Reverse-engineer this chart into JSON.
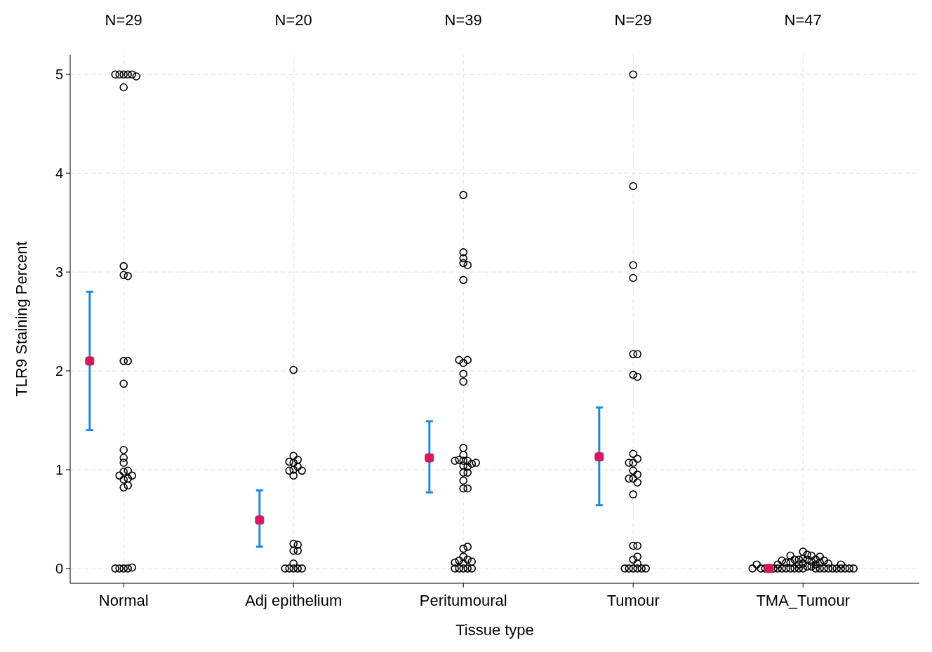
{
  "chart_data": {
    "type": "scatter",
    "xlabel": "Tissue type",
    "ylabel": "TLR9 Staining Percent",
    "categories": [
      "Normal",
      "Adj epithelium",
      "Peritumoural",
      "Tumour",
      "TMA_Tumour"
    ],
    "ylim": [
      -0.15,
      5.2
    ],
    "yticks": [
      0,
      1,
      2,
      3,
      4,
      5
    ],
    "grid": true,
    "annotations": [
      "N=29",
      "N=20",
      "N=39",
      "N=29",
      "N=47"
    ],
    "series": [
      {
        "color": "#000000",
        "marker": "circle",
        "x": [
          "Normal",
          "Normal",
          "Normal",
          "Normal",
          "Normal",
          "Normal",
          "Normal",
          "Normal",
          "Normal",
          "Normal",
          "Normal",
          "Normal",
          "Normal",
          "Normal",
          "Normal",
          "Normal",
          "Normal",
          "Normal",
          "Normal",
          "Normal",
          "Normal",
          "Normal",
          "Normal",
          "Normal",
          "Normal",
          "Normal",
          "Normal",
          "Normal",
          "Normal",
          "Adj epithelium",
          "Adj epithelium",
          "Adj epithelium",
          "Adj epithelium",
          "Adj epithelium",
          "Adj epithelium",
          "Adj epithelium",
          "Adj epithelium",
          "Adj epithelium",
          "Adj epithelium",
          "Adj epithelium",
          "Adj epithelium",
          "Adj epithelium",
          "Adj epithelium",
          "Adj epithelium",
          "Adj epithelium",
          "Adj epithelium",
          "Adj epithelium",
          "Adj epithelium",
          "Adj epithelium",
          "Peritumoural",
          "Peritumoural",
          "Peritumoural",
          "Peritumoural",
          "Peritumoural",
          "Peritumoural",
          "Peritumoural",
          "Peritumoural",
          "Peritumoural",
          "Peritumoural",
          "Peritumoural",
          "Peritumoural",
          "Peritumoural",
          "Peritumoural",
          "Peritumoural",
          "Peritumoural",
          "Peritumoural",
          "Peritumoural",
          "Peritumoural",
          "Peritumoural",
          "Peritumoural",
          "Peritumoural",
          "Peritumoural",
          "Peritumoural",
          "Peritumoural",
          "Peritumoural",
          "Peritumoural",
          "Peritumoural",
          "Peritumoural",
          "Peritumoural",
          "Peritumoural",
          "Peritumoural",
          "Peritumoural",
          "Peritumoural",
          "Peritumoural",
          "Peritumoural",
          "Peritumoural",
          "Peritumoural",
          "Peritumoural",
          "Tumour",
          "Tumour",
          "Tumour",
          "Tumour",
          "Tumour",
          "Tumour",
          "Tumour",
          "Tumour",
          "Tumour",
          "Tumour",
          "Tumour",
          "Tumour",
          "Tumour",
          "Tumour",
          "Tumour",
          "Tumour",
          "Tumour",
          "Tumour",
          "Tumour",
          "Tumour",
          "Tumour",
          "Tumour",
          "Tumour",
          "Tumour",
          "Tumour",
          "Tumour",
          "Tumour",
          "Tumour",
          "Tumour",
          "TMA_Tumour",
          "TMA_Tumour",
          "TMA_Tumour",
          "TMA_Tumour",
          "TMA_Tumour",
          "TMA_Tumour",
          "TMA_Tumour",
          "TMA_Tumour",
          "TMA_Tumour",
          "TMA_Tumour",
          "TMA_Tumour",
          "TMA_Tumour",
          "TMA_Tumour",
          "TMA_Tumour",
          "TMA_Tumour",
          "TMA_Tumour",
          "TMA_Tumour",
          "TMA_Tumour",
          "TMA_Tumour",
          "TMA_Tumour",
          "TMA_Tumour",
          "TMA_Tumour",
          "TMA_Tumour",
          "TMA_Tumour",
          "TMA_Tumour",
          "TMA_Tumour",
          "TMA_Tumour",
          "TMA_Tumour",
          "TMA_Tumour",
          "TMA_Tumour",
          "TMA_Tumour",
          "TMA_Tumour",
          "TMA_Tumour",
          "TMA_Tumour",
          "TMA_Tumour",
          "TMA_Tumour",
          "TMA_Tumour",
          "TMA_Tumour",
          "TMA_Tumour",
          "TMA_Tumour",
          "TMA_Tumour",
          "TMA_Tumour",
          "TMA_Tumour",
          "TMA_Tumour",
          "TMA_Tumour",
          "TMA_Tumour",
          "TMA_Tumour"
        ],
        "values": [
          5,
          5,
          5,
          4.87,
          5,
          5,
          4.98,
          2.97,
          3.06,
          2.96,
          2.1,
          2.1,
          1.87,
          1.2,
          0.98,
          0.9,
          0.91,
          0.82,
          0.94,
          0.99,
          1.12,
          1.07,
          0.94,
          0.84,
          0,
          0,
          0,
          0.01,
          0,
          2.01,
          0.94,
          1.07,
          1.1,
          1.03,
          1.14,
          1.08,
          1.0,
          0.99,
          0,
          0,
          0.25,
          0.18,
          0.18,
          0,
          0,
          0.05,
          0,
          0.99,
          0.24,
          3.78,
          3.09,
          3.14,
          3.2,
          3.07,
          2.92,
          2.08,
          2.11,
          2.11,
          1.97,
          1.89,
          1.22,
          1.15,
          1.09,
          1.04,
          1.09,
          1.1,
          0.97,
          1.06,
          1.09,
          0.97,
          0.89,
          0.81,
          0.81,
          1.03,
          0,
          0.12,
          0.05,
          0,
          0.2,
          0.22,
          0,
          0,
          0.09,
          0,
          0.08,
          0.07,
          1.07,
          0.06,
          5,
          3.87,
          3.07,
          2.94,
          2.17,
          2.17,
          1.96,
          1.94,
          1.07,
          1.11,
          1.07,
          0.91,
          0.95,
          0.75,
          0.87,
          0.99,
          0.91,
          1.16,
          0,
          0.23,
          0.23,
          0.09,
          0.12,
          0.05,
          0,
          0,
          0,
          0,
          0,
          0,
          0.1,
          0.02,
          0,
          0.09,
          0.02,
          0,
          0.09,
          0.04,
          0,
          0.13,
          0.17,
          0.09,
          0,
          0.06,
          0,
          0,
          0.06,
          0,
          0,
          0.04,
          0,
          0,
          0,
          0.14,
          0.09,
          0,
          0.13,
          0.07,
          0.04,
          0.12,
          0,
          0.06,
          0,
          0,
          0,
          0.04,
          0,
          0,
          0,
          0.05,
          0.08,
          0,
          0.08,
          0.05,
          0.04,
          0
        ]
      },
      {
        "color": "#d6195c",
        "marker": "square",
        "x": [
          "Normal",
          "Adj epithelium",
          "Peritumoural",
          "Tumour",
          "TMA_Tumour"
        ],
        "values": [
          2.1,
          0.49,
          1.12,
          1.13,
          0
        ],
        "errors": [
          [
            1.4,
            2.8
          ],
          [
            0.22,
            0.79
          ],
          [
            0.77,
            1.49
          ],
          [
            0.64,
            1.63
          ],
          null
        ]
      }
    ]
  }
}
